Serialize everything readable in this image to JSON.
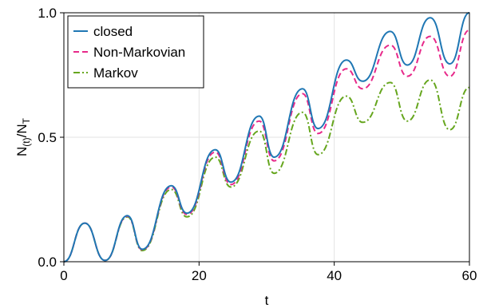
{
  "chart_data": {
    "type": "line",
    "title": "",
    "xlabel": "t",
    "ylabel_main": "N",
    "ylabel_sub1": "(t)",
    "ylabel_mid": "/N",
    "ylabel_sub2": "T",
    "xlim": [
      0,
      60
    ],
    "ylim": [
      0,
      1.0
    ],
    "xticks": [
      0,
      20,
      40,
      60
    ],
    "xtick_labels": [
      "0",
      "20",
      "40",
      "60"
    ],
    "yticks": [
      0,
      0.5,
      1.0
    ],
    "ytick_labels": [
      "0.0",
      "0.5",
      "1.0"
    ],
    "grid": true,
    "legend_position": "top-left",
    "series": [
      {
        "name": "closed",
        "color": "#1f77b4",
        "dash": "solid",
        "x": [
          0,
          3.1,
          6.1,
          9.4,
          11.6,
          15.9,
          18.2,
          22.4,
          24.7,
          28.9,
          31.1,
          35.3,
          37.6,
          41.8,
          44.2,
          48.3,
          50.8,
          54.2,
          57.1,
          60
        ],
        "y": [
          0.0,
          0.155,
          0.005,
          0.185,
          0.05,
          0.305,
          0.195,
          0.45,
          0.32,
          0.585,
          0.42,
          0.695,
          0.535,
          0.81,
          0.725,
          0.925,
          0.79,
          0.98,
          0.795,
          1.0
        ]
      },
      {
        "name": "Non-Markovian",
        "color": "#e7298a",
        "dash": "dashed",
        "x": [
          0,
          3.1,
          6.1,
          9.4,
          11.6,
          15.9,
          18.2,
          22.4,
          24.7,
          28.9,
          31.1,
          35.3,
          37.6,
          41.8,
          44.2,
          48.3,
          50.8,
          54.2,
          57.1,
          60
        ],
        "y": [
          0.0,
          0.155,
          0.005,
          0.183,
          0.048,
          0.3,
          0.19,
          0.44,
          0.31,
          0.565,
          0.405,
          0.675,
          0.515,
          0.775,
          0.695,
          0.87,
          0.745,
          0.905,
          0.745,
          0.93
        ]
      },
      {
        "name": "Markov",
        "color": "#66a61e",
        "dash": "dashdot",
        "x": [
          0,
          3.1,
          6.1,
          9.4,
          11.6,
          15.9,
          18.2,
          22.4,
          24.7,
          28.9,
          31.1,
          35.3,
          37.6,
          41.8,
          44.2,
          48.3,
          50.8,
          54.2,
          57.1,
          60
        ],
        "y": [
          0.0,
          0.155,
          0.005,
          0.18,
          0.045,
          0.29,
          0.18,
          0.42,
          0.3,
          0.525,
          0.355,
          0.6,
          0.43,
          0.665,
          0.56,
          0.72,
          0.565,
          0.73,
          0.53,
          0.7
        ]
      }
    ]
  }
}
